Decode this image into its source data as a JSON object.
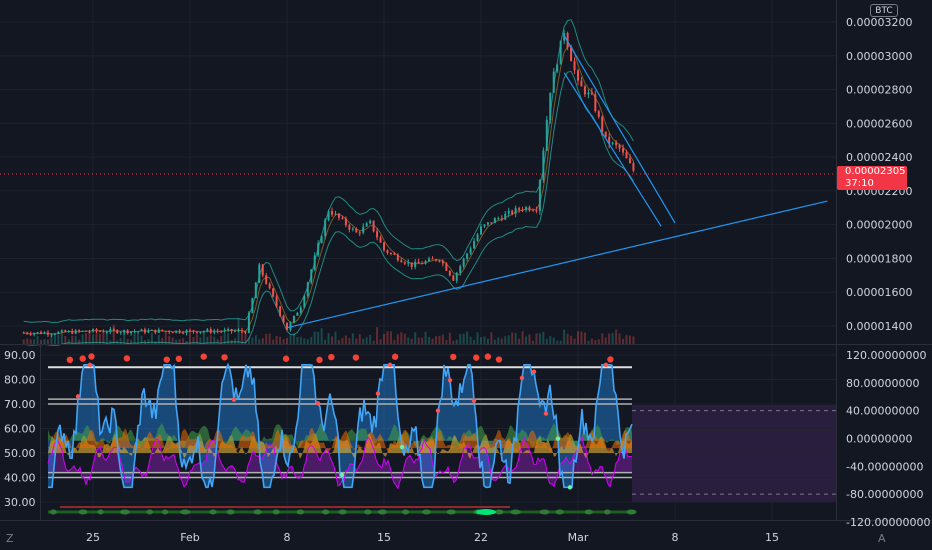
{
  "header": {
    "currency_badge": "BTC"
  },
  "footer": {
    "left_button": "Z",
    "right_button": "A"
  },
  "current_price": {
    "value": "0.00002305",
    "countdown": "37:10"
  },
  "chart_data": [
    {
      "type": "line",
      "name": "price-pane",
      "title": "",
      "x": [
        "Jan 20",
        "Jan 22",
        "Jan 25",
        "Jan 28",
        "Jan 31",
        "Feb 3",
        "Feb 5",
        "Feb 6",
        "Feb 8",
        "Feb 9",
        "Feb 11",
        "Feb 13",
        "Feb 14",
        "Feb 15",
        "Feb 17",
        "Feb 19",
        "Feb 20",
        "Feb 22",
        "Feb 23",
        "Feb 25",
        "Feb 26",
        "Feb 27",
        "Feb 28",
        "Mar 1",
        "Mar 2",
        "Mar 3",
        "Mar 4",
        "Mar 5"
      ],
      "y": [
        1.36e-05,
        1.36e-05,
        1.37e-05,
        1.37e-05,
        1.37e-05,
        1.37e-05,
        1.37e-05,
        1.75e-05,
        1.38e-05,
        1.52e-05,
        2.09e-05,
        1.95e-05,
        2.01e-05,
        1.85e-05,
        1.76e-05,
        1.8e-05,
        1.68e-05,
        1.98e-05,
        2.03e-05,
        2.1e-05,
        2.1e-05,
        2.8e-05,
        3.15e-05,
        2.83e-05,
        2.75e-05,
        2.5e-05,
        2.45e-05,
        2.32e-05
      ],
      "x_ticks": [
        "25",
        "Feb",
        "8",
        "15",
        "22",
        "Mar",
        "8",
        "15"
      ],
      "y_ticks": [
        "0.00001400",
        "0.00001600",
        "0.00001800",
        "0.00002000",
        "0.00002200",
        "0.00002400",
        "0.00002600",
        "0.00002800",
        "0.00003000",
        "0.00003200"
      ],
      "ylim": [
        1.33e-05,
        3.25e-05
      ],
      "trendlines": [
        {
          "from": [
            "Feb 8",
            1.39e-05
          ],
          "to": [
            "Mar 19",
            2.14e-05
          ]
        },
        {
          "from": [
            "Feb 28",
            3.12e-05
          ],
          "to": [
            "Mar 8",
            2.01e-05
          ]
        },
        {
          "from": [
            "Feb 28",
            2.9e-05
          ],
          "to": [
            "Mar 7",
            1.99e-05
          ]
        }
      ],
      "grid": true
    },
    {
      "type": "line",
      "name": "oscillator-pane",
      "title": "",
      "left_ticks": [
        "30.00",
        "40.00",
        "50.00",
        "60.00",
        "70.00",
        "80.00",
        "90.00"
      ],
      "right_ticks": [
        "-120.00000000",
        "-80.00000000",
        "-40.00000000",
        "0.00000000",
        "40.00000000",
        "80.00000000",
        "120.00000000"
      ],
      "left_ylim": [
        25,
        93
      ],
      "reference_lines": [
        85,
        72,
        70,
        42,
        40
      ],
      "dashed_levels_right": [
        40,
        -80
      ],
      "grid": true
    }
  ],
  "colors": {
    "background": "#131722",
    "up": "#26a69a",
    "down": "#ef5350",
    "trendline": "#2196f3",
    "envelope": "#26a69a",
    "oscillator": "#42a5f5",
    "price_line": "#f23645",
    "zone": "#2a1e3e"
  }
}
